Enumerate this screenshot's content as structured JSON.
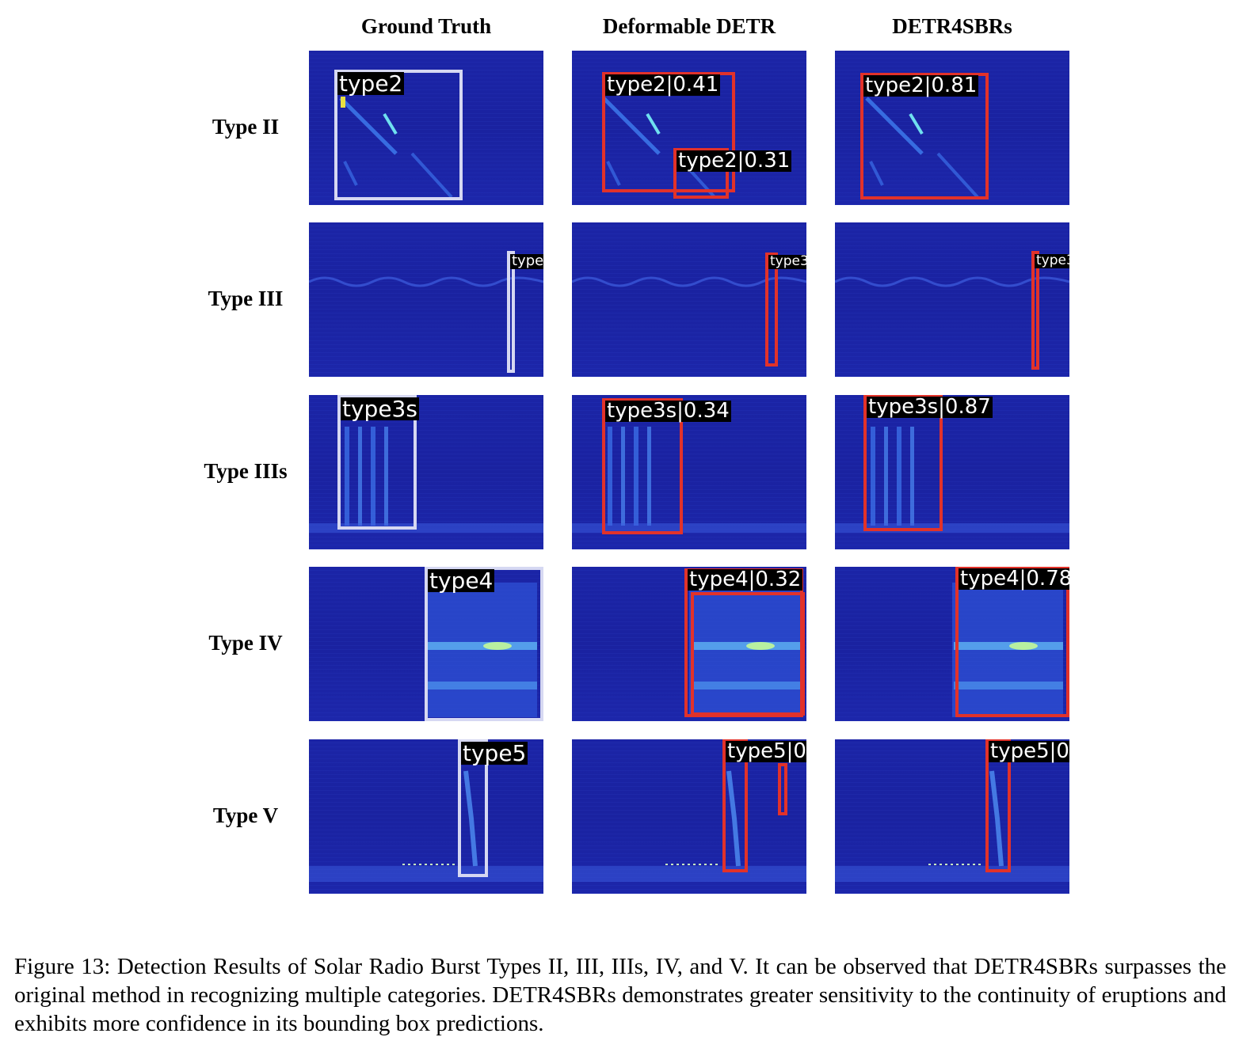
{
  "columns": [
    "Ground Truth",
    "Deformable DETR",
    "DETR4SBRs"
  ],
  "rows": [
    "Type II",
    "Type III",
    "Type IIIs",
    "Type IV",
    "Type V"
  ],
  "labels": {
    "type2_gt": "type2",
    "type2_def_a": "type2|0.41",
    "type2_def_b": "type2|0.31",
    "type2_ours": "type2|0.81",
    "type3_gt": "type",
    "type3_def": "type3",
    "type3_ours": "type3",
    "type3s_gt": "type3s",
    "type3s_def": "type3s|0.34",
    "type3s_ours": "type3s|0.87",
    "type4_gt": "type4",
    "type4_def": "type4|0.32",
    "type4_ours": "type4|0.78",
    "type5_gt": "type5",
    "type5_def": "type5|0",
    "type5_ours": "type5|0"
  },
  "caption": "Figure 13: Detection Results of Solar Radio Burst Types II, III, IIIs, IV, and V. It can be observed that DETR4SBRs surpasses the original method in recognizing multiple categories. DETR4SBRs demonstrates greater sensitivity to the continuity of eruptions and exhibits more confidence in its bounding box predictions."
}
